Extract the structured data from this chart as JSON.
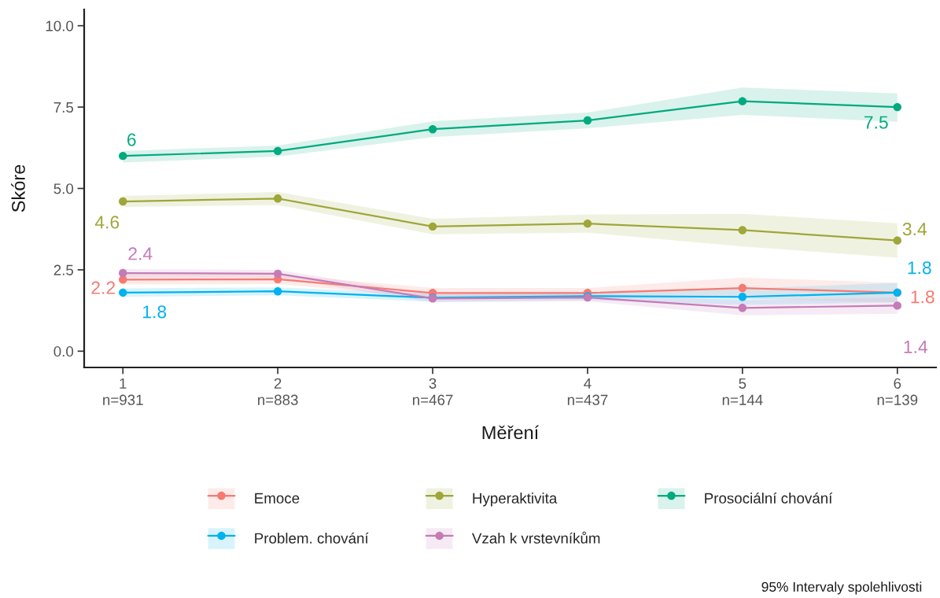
{
  "chart_data": {
    "type": "line",
    "xlabel": "Měření",
    "ylabel": "Skóre",
    "categories": [
      "1\nn=931",
      "2\nn=883",
      "3\nn=467",
      "4\nn=437",
      "5\nn=144",
      "6\nn=139"
    ],
    "ylim": [
      -0.5,
      10.5
    ],
    "yticks": [
      {
        "value": 0,
        "label": "0.0"
      },
      {
        "value": 2.5,
        "label": "2.5"
      },
      {
        "value": 5,
        "label": "5.0"
      },
      {
        "value": 7.5,
        "label": "7.5"
      },
      {
        "value": 10,
        "label": "10.0"
      }
    ],
    "grid": false,
    "legend": "bottom",
    "marker": "circle",
    "line_style": "solid",
    "annotations": [
      "95% Intervaly spolehlivosti"
    ],
    "series": [
      {
        "name": "Emoce",
        "color": "#f57a72",
        "values": [
          2.2,
          2.21,
          1.79,
          1.79,
          1.94,
          1.8
        ],
        "lower": [
          2.05,
          2.06,
          1.65,
          1.65,
          1.62,
          1.5
        ],
        "upper": [
          2.35,
          2.36,
          1.94,
          1.94,
          2.26,
          2.1
        ],
        "value_labels": [
          "2.2",
          null,
          null,
          null,
          null,
          "1.8"
        ]
      },
      {
        "name": "Hyperaktivita",
        "color": "#9fa63a",
        "values": [
          4.6,
          4.69,
          3.83,
          3.92,
          3.72,
          3.4
        ],
        "lower": [
          4.43,
          4.49,
          3.59,
          3.64,
          3.22,
          2.87
        ],
        "upper": [
          4.77,
          4.89,
          4.07,
          4.2,
          4.22,
          3.93
        ],
        "value_labels": [
          "4.6",
          null,
          null,
          null,
          null,
          "3.4"
        ]
      },
      {
        "name": "Prosociální chování",
        "color": "#00aa7f",
        "values": [
          6.0,
          6.15,
          6.82,
          7.09,
          7.68,
          7.5
        ],
        "lower": [
          5.8,
          5.98,
          6.58,
          6.85,
          7.26,
          7.05
        ],
        "upper": [
          6.15,
          6.32,
          7.06,
          7.33,
          8.1,
          7.92
        ],
        "value_labels": [
          "6",
          null,
          null,
          null,
          null,
          "7.5"
        ]
      },
      {
        "name": "Problem. chování",
        "color": "#00b2ee",
        "values": [
          1.8,
          1.84,
          1.64,
          1.69,
          1.67,
          1.8
        ],
        "lower": [
          1.67,
          1.72,
          1.52,
          1.57,
          1.42,
          1.5
        ],
        "upper": [
          1.93,
          1.96,
          1.76,
          1.81,
          1.92,
          2.1
        ],
        "value_labels": [
          "1.8",
          null,
          null,
          null,
          null,
          "1.8"
        ]
      },
      {
        "name": "Vzah k vrstevníkům",
        "color": "#c47bb6",
        "values": [
          2.4,
          2.38,
          1.62,
          1.65,
          1.33,
          1.4
        ],
        "lower": [
          2.26,
          2.26,
          1.5,
          1.53,
          1.1,
          1.15
        ],
        "upper": [
          2.52,
          2.5,
          1.74,
          1.77,
          1.56,
          1.65
        ],
        "value_labels": [
          "2.4",
          null,
          null,
          null,
          null,
          "1.4"
        ]
      }
    ]
  }
}
